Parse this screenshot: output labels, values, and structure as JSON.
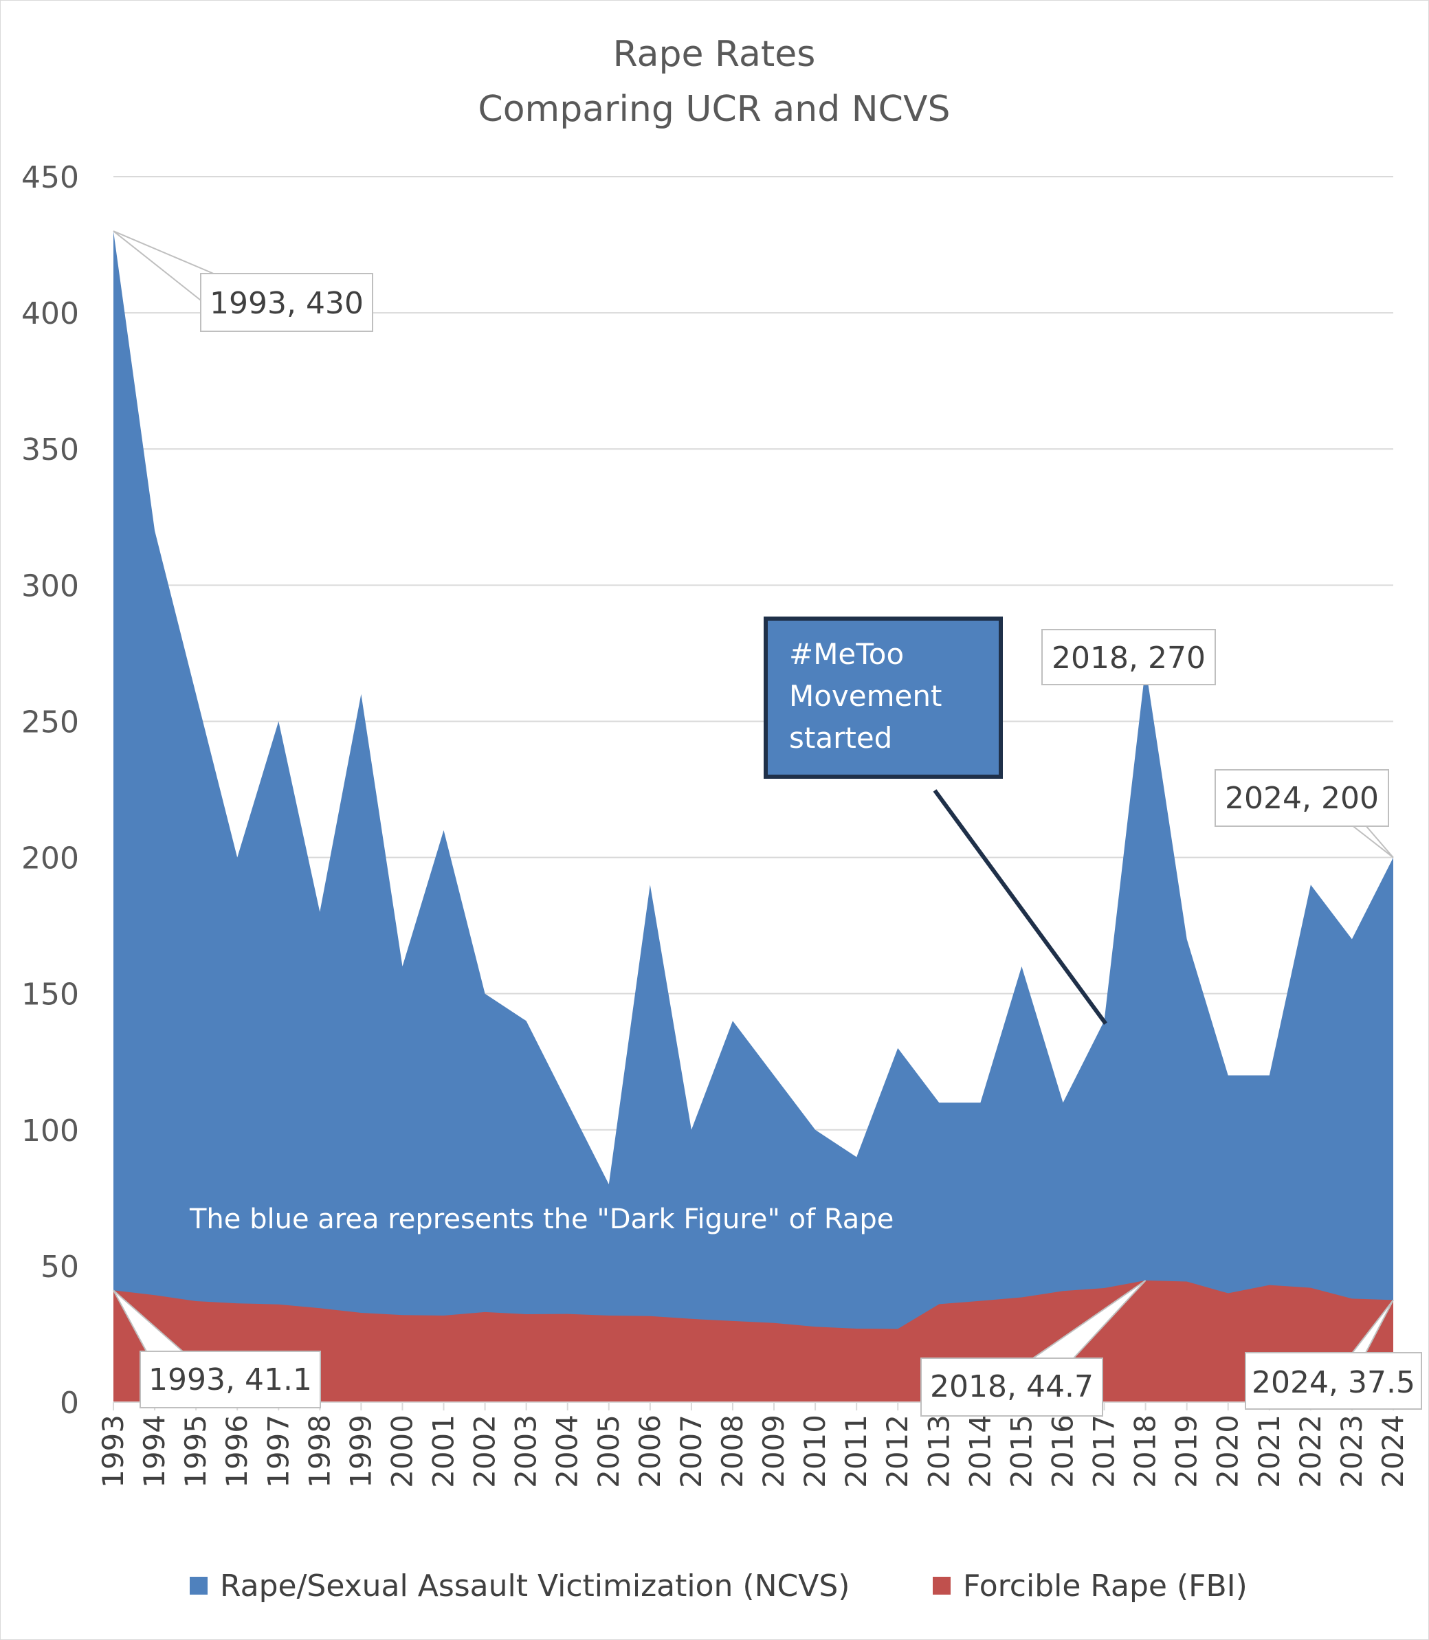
{
  "chart_data": {
    "type": "area",
    "title": "Rape Rates",
    "subtitle": "Comparing UCR and NCVS",
    "xlabel": "",
    "ylabel": "",
    "ylim": [
      0,
      450
    ],
    "yticks": [
      0,
      50,
      100,
      150,
      200,
      250,
      300,
      350,
      400,
      450
    ],
    "grid": true,
    "legend_position": "bottom",
    "categories": [
      "1993",
      "1994",
      "1995",
      "1996",
      "1997",
      "1998",
      "1999",
      "2000",
      "2001",
      "2002",
      "2003",
      "2004",
      "2005",
      "2006",
      "2007",
      "2008",
      "2009",
      "2010",
      "2011",
      "2012",
      "2013",
      "2014",
      "2015",
      "2016",
      "2017",
      "2018",
      "2019",
      "2020",
      "2021",
      "2022",
      "2023",
      "2024"
    ],
    "series": [
      {
        "name": "Rape/Sexual Assault Victimization (NCVS)",
        "color": "#4f81bd",
        "values": [
          430,
          320,
          260,
          200,
          250,
          180,
          260,
          160,
          210,
          150,
          140,
          110,
          80,
          190,
          100,
          140,
          120,
          100,
          90,
          130,
          110,
          110,
          160,
          110,
          140,
          270,
          170,
          120,
          120,
          190,
          170,
          200
        ]
      },
      {
        "name": "Forcible Rape (FBI)",
        "color": "#c0504d",
        "values": [
          41.1,
          39.3,
          37.1,
          36.3,
          35.9,
          34.5,
          32.8,
          32.0,
          31.8,
          33.1,
          32.3,
          32.4,
          31.8,
          31.6,
          30.6,
          29.8,
          29.1,
          27.7,
          27.0,
          26.9,
          36.0,
          37.2,
          38.5,
          40.8,
          41.9,
          44.7,
          44.3,
          40.0,
          43.0,
          42.0,
          38.0,
          37.5
        ]
      }
    ],
    "annotations": [
      {
        "series": 0,
        "year": "1993",
        "text": "1993, 430"
      },
      {
        "series": 0,
        "year": "2018",
        "text": "2018, 270"
      },
      {
        "series": 0,
        "year": "2024",
        "text": "2024, 200"
      },
      {
        "series": 1,
        "year": "1993",
        "text": "1993, 41.1"
      },
      {
        "series": 1,
        "year": "2018",
        "text": "2018, 44.7"
      },
      {
        "series": 1,
        "year": "2024",
        "text": "2024, 37.5"
      }
    ],
    "notes": {
      "dark_figure": "The blue area represents the \"Dark Figure\" of Rape",
      "metoo_lines": [
        "#MeToo",
        "Movement",
        "started"
      ],
      "metoo_point": {
        "year": "2017",
        "value": 140
      }
    }
  }
}
